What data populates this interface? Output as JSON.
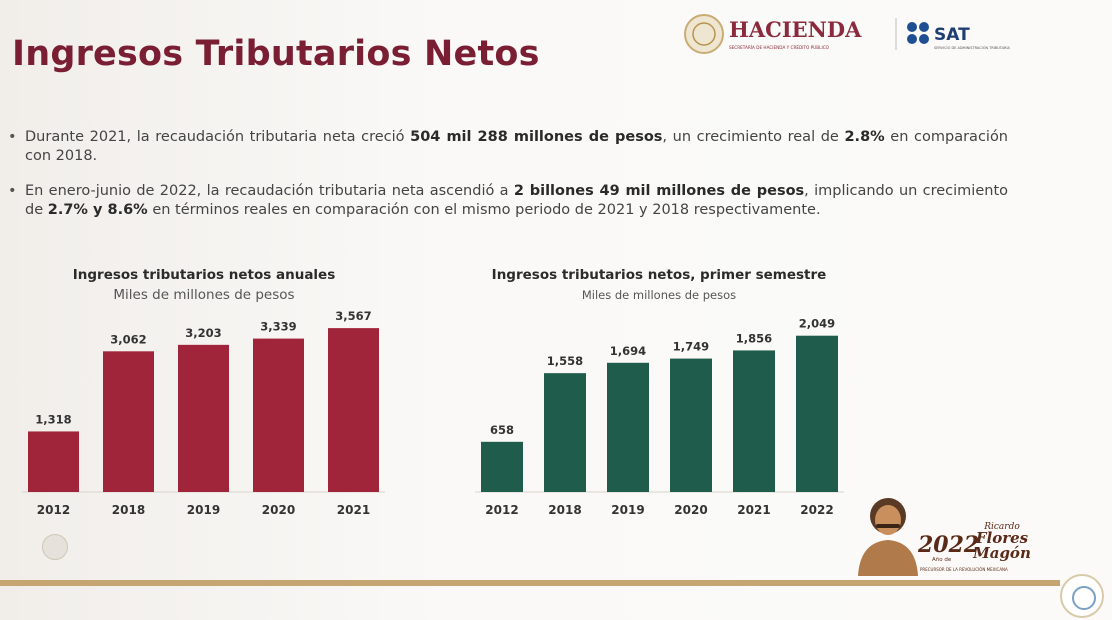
{
  "slide": {
    "title": "Ingresos Tributarios Netos",
    "logo_hacienda": "HACIENDA",
    "logo_sat": "SAT",
    "logo_hacienda_sub": "SECRETARÍA DE HACIENDA Y CRÉDITO PÚBLICO",
    "logo_sat_sub": "SERVICIO DE ADMINISTRACIÓN TRIBUTARIA",
    "bullets": [
      {
        "p1": "Durante 2021, la recaudación tributaria neta creció ",
        "b1": "504 mil 288 millones de pesos",
        "p2": ", un crecimiento real de ",
        "b2": "2.8%",
        "p3": " en comparación con 2018."
      },
      {
        "p1": "En enero-junio de 2022, la recaudación tributaria neta ascendió a ",
        "b1": "2 billones 49 mil millones de pesos",
        "p2": ", implicando un crecimiento de ",
        "b2": "2.7% y 8.6%",
        "p3": " en términos reales en comparación con el mismo periodo de 2021 y 2018 respectivamente."
      }
    ],
    "badge": {
      "year": "2022",
      "name_line1": "Ricardo",
      "name_line2": "Flores",
      "name_line3": "Magón",
      "year_label": "Año de",
      "caption": "PRECURSOR DE LA REVOLUCIÓN MEXICANA"
    }
  },
  "chart_data": [
    {
      "type": "bar",
      "title": "Ingresos tributarios netos anuales",
      "subtitle": "Miles de millones de pesos",
      "categories": [
        "2012",
        "2018",
        "2019",
        "2020",
        "2021"
      ],
      "values": [
        1318,
        3062,
        3203,
        3339,
        3567
      ],
      "labels": [
        "1,318",
        "3,062",
        "3,203",
        "3,339",
        "3,567"
      ],
      "color": "#a0243a",
      "ylim": [
        0,
        3700
      ],
      "grid": false
    },
    {
      "type": "bar",
      "title": "Ingresos tributarios netos, primer semestre",
      "subtitle": "Miles de millones de pesos",
      "categories": [
        "2012",
        "2018",
        "2019",
        "2020",
        "2021",
        "2022"
      ],
      "values": [
        658,
        1558,
        1694,
        1749,
        1856,
        2049
      ],
      "labels": [
        "658",
        "1,558",
        "1,694",
        "1,749",
        "1,856",
        "2,049"
      ],
      "color": "#1f5c4c",
      "ylim": [
        0,
        2150
      ],
      "grid": false
    }
  ]
}
